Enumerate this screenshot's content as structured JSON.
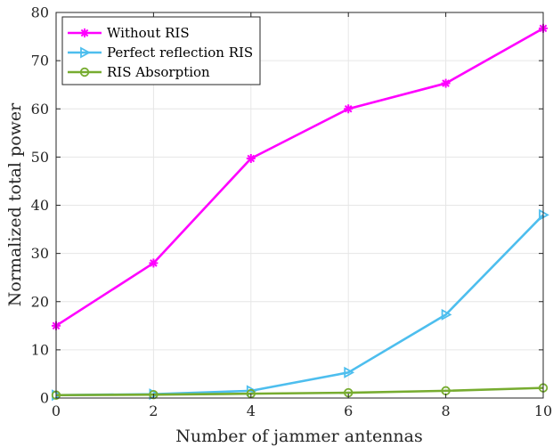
{
  "chart_data": {
    "type": "line",
    "xlabel": "Number of jammer antennas",
    "ylabel": "Normalized total power",
    "xlim": [
      0,
      10
    ],
    "ylim": [
      0,
      80
    ],
    "xticks": [
      "0",
      "2",
      "4",
      "6",
      "8",
      "10"
    ],
    "yticks": [
      "0",
      "10",
      "20",
      "30",
      "40",
      "50",
      "60",
      "70",
      "80"
    ],
    "grid": true,
    "legend_position": "top-left",
    "series": [
      {
        "name": "Without RIS",
        "color": "#ff00ff",
        "marker": "asterisk",
        "x": [
          0,
          2,
          4,
          6,
          8,
          10
        ],
        "y": [
          15,
          28,
          49.7,
          60,
          65.3,
          76.7
        ]
      },
      {
        "name": "Perfect reflection RIS",
        "color": "#4dbeee",
        "marker": "triangle-right",
        "x": [
          0,
          2,
          4,
          6,
          8,
          10
        ],
        "y": [
          0.6,
          0.8,
          1.5,
          5.3,
          17.3,
          38
        ]
      },
      {
        "name": "RIS Absorption",
        "color": "#77ac30",
        "marker": "circle",
        "x": [
          0,
          2,
          4,
          6,
          8,
          10
        ],
        "y": [
          0.6,
          0.7,
          0.9,
          1.1,
          1.5,
          2.1
        ]
      }
    ]
  }
}
